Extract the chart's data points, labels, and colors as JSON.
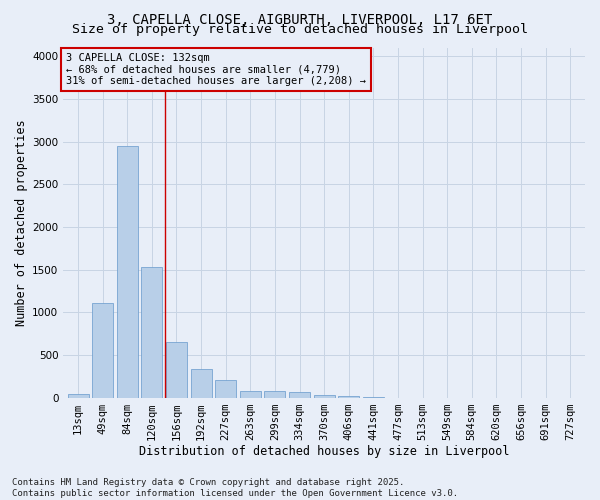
{
  "title_line1": "3, CAPELLA CLOSE, AIGBURTH, LIVERPOOL, L17 6ET",
  "title_line2": "Size of property relative to detached houses in Liverpool",
  "xlabel": "Distribution of detached houses by size in Liverpool",
  "ylabel": "Number of detached properties",
  "categories": [
    "13sqm",
    "49sqm",
    "84sqm",
    "120sqm",
    "156sqm",
    "192sqm",
    "227sqm",
    "263sqm",
    "299sqm",
    "334sqm",
    "370sqm",
    "406sqm",
    "441sqm",
    "477sqm",
    "513sqm",
    "549sqm",
    "584sqm",
    "620sqm",
    "656sqm",
    "691sqm",
    "727sqm"
  ],
  "values": [
    42,
    1110,
    2950,
    1530,
    660,
    340,
    210,
    85,
    85,
    70,
    35,
    25,
    10,
    5,
    2,
    1,
    0,
    0,
    0,
    0,
    0
  ],
  "bar_color": "#b8cfe8",
  "bar_edge_color": "#6699cc",
  "grid_color": "#c8d4e4",
  "background_color": "#e8eef8",
  "vline_x": 3.53,
  "vline_color": "#cc0000",
  "annotation_text": "3 CAPELLA CLOSE: 132sqm\n← 68% of detached houses are smaller (4,779)\n31% of semi-detached houses are larger (2,208) →",
  "annotation_box_color": "#cc0000",
  "ylim": [
    0,
    4100
  ],
  "yticks": [
    0,
    500,
    1000,
    1500,
    2000,
    2500,
    3000,
    3500,
    4000
  ],
  "footer_line1": "Contains HM Land Registry data © Crown copyright and database right 2025.",
  "footer_line2": "Contains public sector information licensed under the Open Government Licence v3.0.",
  "title_fontsize": 10,
  "subtitle_fontsize": 9.5,
  "axis_label_fontsize": 8.5,
  "tick_fontsize": 7.5,
  "annotation_fontsize": 7.5,
  "footer_fontsize": 6.5
}
